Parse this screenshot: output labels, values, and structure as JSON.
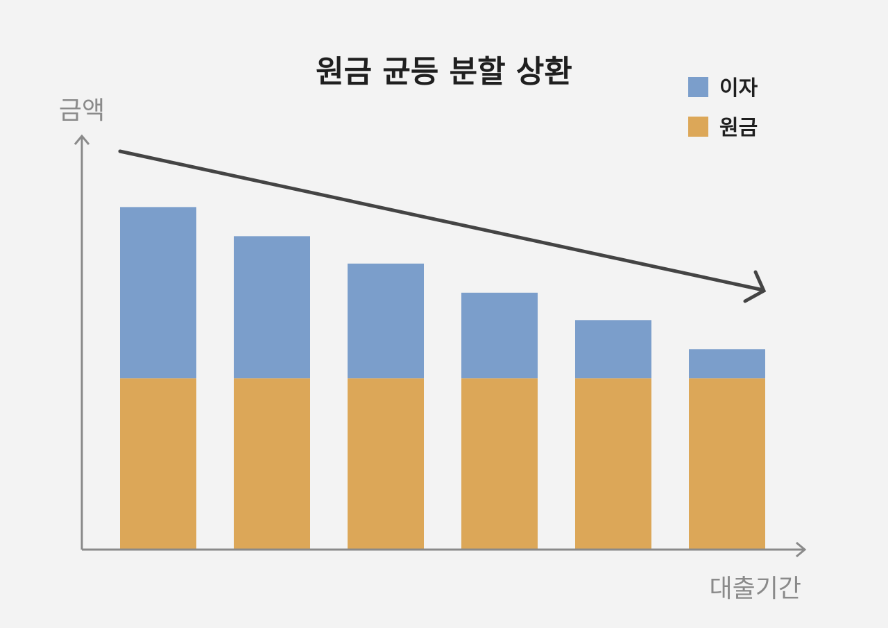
{
  "chart_data": {
    "type": "bar",
    "stacked": true,
    "title": "원금 균등 분할 상환",
    "xlabel": "대출기간",
    "ylabel": "금액",
    "categories": [
      "",
      "",
      "",
      "",
      "",
      ""
    ],
    "series": [
      {
        "name": "원금",
        "color": "#dca758",
        "values": [
          10,
          10,
          10,
          10,
          10,
          10
        ]
      },
      {
        "name": "이자",
        "color": "#7b9ecb",
        "values": [
          10,
          8.3,
          6.7,
          5,
          3.4,
          1.7
        ]
      }
    ],
    "ylim": [
      0,
      25
    ],
    "grid": false,
    "legend": "top-right",
    "trend_arrow": "decreasing"
  }
}
